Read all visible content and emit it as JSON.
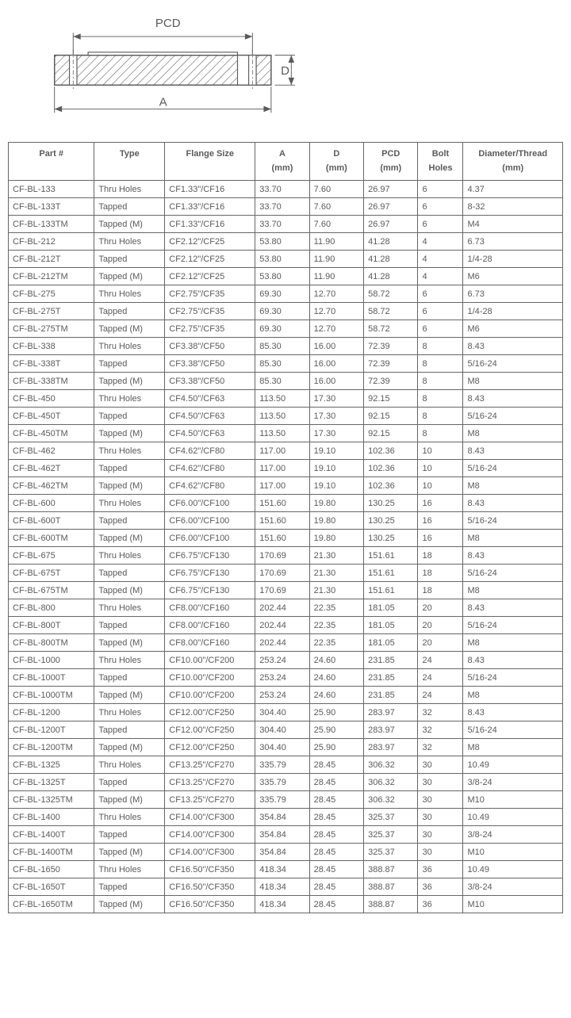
{
  "diagram": {
    "label_pcd": "PCD",
    "label_a": "A",
    "label_d": "D",
    "stroke": "#5a5a5a",
    "hatch": "#5a5a5a",
    "bg": "#ffffff"
  },
  "table": {
    "columns": [
      {
        "line1": "Part #",
        "line2": ""
      },
      {
        "line1": "Type",
        "line2": ""
      },
      {
        "line1": "Flange Size",
        "line2": ""
      },
      {
        "line1": "A",
        "line2": "(mm)"
      },
      {
        "line1": "D",
        "line2": "(mm)"
      },
      {
        "line1": "PCD",
        "line2": "(mm)"
      },
      {
        "line1": "Bolt",
        "line2": "Holes"
      },
      {
        "line1": "Diameter/Thread",
        "line2": "(mm)"
      }
    ],
    "rows": [
      [
        "CF-BL-133",
        "Thru Holes",
        "CF1.33\"/CF16",
        "33.70",
        "7.60",
        "26.97",
        "6",
        "4.37"
      ],
      [
        "CF-BL-133T",
        "Tapped",
        "CF1.33\"/CF16",
        "33.70",
        "7.60",
        "26.97",
        "6",
        "8-32"
      ],
      [
        "CF-BL-133TM",
        "Tapped (M)",
        "CF1.33\"/CF16",
        "33.70",
        "7.60",
        "26.97",
        "6",
        "M4"
      ],
      [
        "CF-BL-212",
        "Thru Holes",
        "CF2.12\"/CF25",
        "53.80",
        "11.90",
        "41.28",
        "4",
        "6.73"
      ],
      [
        "CF-BL-212T",
        "Tapped",
        "CF2.12\"/CF25",
        "53.80",
        "11.90",
        "41.28",
        "4",
        "1/4-28"
      ],
      [
        "CF-BL-212TM",
        "Tapped (M)",
        "CF2.12\"/CF25",
        "53.80",
        "11.90",
        "41.28",
        "4",
        "M6"
      ],
      [
        "CF-BL-275",
        "Thru Holes",
        "CF2.75\"/CF35",
        "69.30",
        "12.70",
        "58.72",
        "6",
        "6.73"
      ],
      [
        "CF-BL-275T",
        "Tapped",
        "CF2.75\"/CF35",
        "69.30",
        "12.70",
        "58.72",
        "6",
        "1/4-28"
      ],
      [
        "CF-BL-275TM",
        "Tapped (M)",
        "CF2.75\"/CF35",
        "69.30",
        "12.70",
        "58.72",
        "6",
        "M6"
      ],
      [
        "CF-BL-338",
        "Thru Holes",
        "CF3.38\"/CF50",
        "85.30",
        "16.00",
        "72.39",
        "8",
        "8.43"
      ],
      [
        "CF-BL-338T",
        "Tapped",
        "CF3.38\"/CF50",
        "85.30",
        "16.00",
        "72.39",
        "8",
        "5/16-24"
      ],
      [
        "CF-BL-338TM",
        "Tapped (M)",
        "CF3.38\"/CF50",
        "85.30",
        "16.00",
        "72.39",
        "8",
        "M8"
      ],
      [
        "CF-BL-450",
        "Thru Holes",
        "CF4.50\"/CF63",
        "113.50",
        "17.30",
        "92.15",
        "8",
        "8.43"
      ],
      [
        "CF-BL-450T",
        "Tapped",
        "CF4.50\"/CF63",
        "113.50",
        "17.30",
        "92.15",
        "8",
        "5/16-24"
      ],
      [
        "CF-BL-450TM",
        "Tapped (M)",
        "CF4.50\"/CF63",
        "113.50",
        "17.30",
        "92.15",
        "8",
        "M8"
      ],
      [
        "CF-BL-462",
        "Thru Holes",
        "CF4.62\"/CF80",
        "117.00",
        "19.10",
        "102.36",
        "10",
        "8.43"
      ],
      [
        "CF-BL-462T",
        "Tapped",
        "CF4.62\"/CF80",
        "117.00",
        "19.10",
        "102.36",
        "10",
        "5/16-24"
      ],
      [
        "CF-BL-462TM",
        "Tapped (M)",
        "CF4.62\"/CF80",
        "117.00",
        "19.10",
        "102.36",
        "10",
        "M8"
      ],
      [
        "CF-BL-600",
        "Thru Holes",
        "CF6.00\"/CF100",
        "151.60",
        "19.80",
        "130.25",
        "16",
        "8.43"
      ],
      [
        "CF-BL-600T",
        "Tapped",
        "CF6.00\"/CF100",
        "151.60",
        "19.80",
        "130.25",
        "16",
        "5/16-24"
      ],
      [
        "CF-BL-600TM",
        "Tapped (M)",
        "CF6.00\"/CF100",
        "151.60",
        "19.80",
        "130.25",
        "16",
        "M8"
      ],
      [
        "CF-BL-675",
        "Thru Holes",
        "CF6.75\"/CF130",
        "170.69",
        "21.30",
        "151.61",
        "18",
        "8.43"
      ],
      [
        "CF-BL-675T",
        "Tapped",
        "CF6.75\"/CF130",
        "170.69",
        "21.30",
        "151.61",
        "18",
        "5/16-24"
      ],
      [
        "CF-BL-675TM",
        "Tapped (M)",
        "CF6.75\"/CF130",
        "170.69",
        "21.30",
        "151.61",
        "18",
        "M8"
      ],
      [
        "CF-BL-800",
        "Thru Holes",
        "CF8.00\"/CF160",
        "202.44",
        "22.35",
        "181.05",
        "20",
        "8.43"
      ],
      [
        "CF-BL-800T",
        "Tapped",
        "CF8.00\"/CF160",
        "202.44",
        "22.35",
        "181.05",
        "20",
        "5/16-24"
      ],
      [
        "CF-BL-800TM",
        "Tapped (M)",
        "CF8.00\"/CF160",
        "202.44",
        "22.35",
        "181.05",
        "20",
        "M8"
      ],
      [
        "CF-BL-1000",
        "Thru Holes",
        "CF10.00\"/CF200",
        "253.24",
        "24.60",
        "231.85",
        "24",
        "8.43"
      ],
      [
        "CF-BL-1000T",
        "Tapped",
        "CF10.00\"/CF200",
        "253.24",
        "24.60",
        "231.85",
        "24",
        "5/16-24"
      ],
      [
        "CF-BL-1000TM",
        "Tapped (M)",
        "CF10.00\"/CF200",
        "253.24",
        "24.60",
        "231.85",
        "24",
        "M8"
      ],
      [
        "CF-BL-1200",
        "Thru Holes",
        "CF12.00\"/CF250",
        "304.40",
        "25.90",
        "283.97",
        "32",
        "8.43"
      ],
      [
        "CF-BL-1200T",
        "Tapped",
        "CF12.00\"/CF250",
        "304.40",
        "25.90",
        "283.97",
        "32",
        "5/16-24"
      ],
      [
        "CF-BL-1200TM",
        "Tapped (M)",
        "CF12.00\"/CF250",
        "304.40",
        "25.90",
        "283.97",
        "32",
        "M8"
      ],
      [
        "CF-BL-1325",
        "Thru Holes",
        "CF13.25\"/CF270",
        "335.79",
        "28.45",
        "306.32",
        "30",
        "10.49"
      ],
      [
        "CF-BL-1325T",
        "Tapped",
        "CF13.25\"/CF270",
        "335.79",
        "28.45",
        "306.32",
        "30",
        "3/8-24"
      ],
      [
        "CF-BL-1325TM",
        "Tapped (M)",
        "CF13.25\"/CF270",
        "335.79",
        "28.45",
        "306.32",
        "30",
        "M10"
      ],
      [
        "CF-BL-1400",
        "Thru Holes",
        "CF14.00\"/CF300",
        "354.84",
        "28.45",
        "325.37",
        "30",
        "10.49"
      ],
      [
        "CF-BL-1400T",
        "Tapped",
        "CF14.00\"/CF300",
        "354.84",
        "28.45",
        "325.37",
        "30",
        "3/8-24"
      ],
      [
        "CF-BL-1400TM",
        "Tapped (M)",
        "CF14.00\"/CF300",
        "354.84",
        "28.45",
        "325.37",
        "30",
        "M10"
      ],
      [
        "CF-BL-1650",
        "Thru Holes",
        "CF16.50\"/CF350",
        "418.34",
        "28.45",
        "388.87",
        "36",
        "10.49"
      ],
      [
        "CF-BL-1650T",
        "Tapped",
        "CF16.50\"/CF350",
        "418.34",
        "28.45",
        "388.87",
        "36",
        "3/8-24"
      ],
      [
        "CF-BL-1650TM",
        "Tapped (M)",
        "CF16.50\"/CF350",
        "418.34",
        "28.45",
        "388.87",
        "36",
        "M10"
      ]
    ]
  }
}
